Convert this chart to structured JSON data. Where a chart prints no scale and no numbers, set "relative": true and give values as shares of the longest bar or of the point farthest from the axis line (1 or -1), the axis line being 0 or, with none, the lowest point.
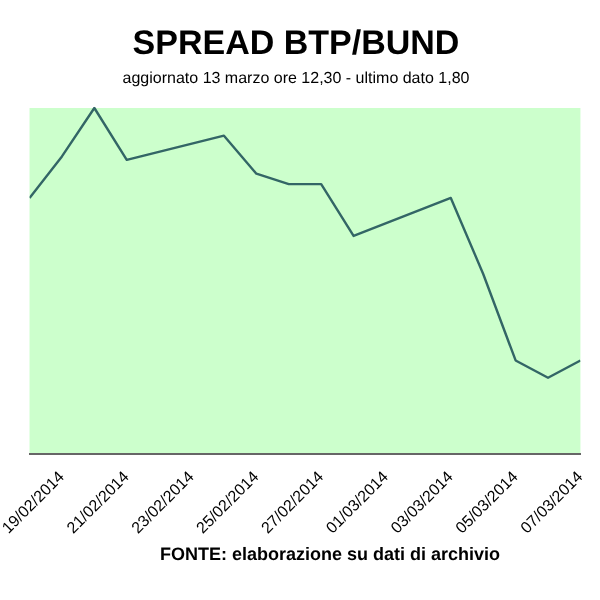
{
  "chart_data": {
    "type": "line",
    "title": "SPREAD BTP/BUND",
    "subtitle": "aggiornato 13 marzo ore 12,30 - ultimo dato 1,80",
    "annotations": [
      "FONTE: elaborazione su dati di archivio"
    ],
    "relative": true,
    "x": [
      "2014-02-18",
      "2014-02-19",
      "2014-02-20",
      "2014-02-21",
      "2014-02-24",
      "2014-02-25",
      "2014-02-26",
      "2014-02-27",
      "2014-02-28",
      "2014-03-03",
      "2014-03-04",
      "2014-03-05",
      "2014-03-06",
      "2014-03-07"
    ],
    "series": [
      {
        "color": "#336666",
        "values": [
          0.74,
          0.86,
          1,
          0.85,
          0.92,
          0.81,
          0.78,
          0.78,
          0.63,
          0.74,
          0.52,
          0.27,
          0.22,
          0.27
        ]
      }
    ],
    "xlim": [
      "2014-02-18",
      "2014-03-07"
    ],
    "xticks": [
      {
        "value": "2014-02-19",
        "label": "19/02/2014"
      },
      {
        "value": "2014-02-21",
        "label": "21/02/2014"
      },
      {
        "value": "2014-02-23",
        "label": "23/02/2014"
      },
      {
        "value": "2014-02-25",
        "label": "25/02/2014"
      },
      {
        "value": "2014-02-27",
        "label": "27/02/2014"
      },
      {
        "value": "2014-03-01",
        "label": "01/03/2014"
      },
      {
        "value": "2014-03-03",
        "label": "03/03/2014"
      },
      {
        "value": "2014-03-05",
        "label": "05/03/2014"
      },
      {
        "value": "2014-03-07",
        "label": "07/03/2014"
      }
    ],
    "grid": false,
    "legend": false,
    "marker": "none",
    "line_style": "solid"
  }
}
